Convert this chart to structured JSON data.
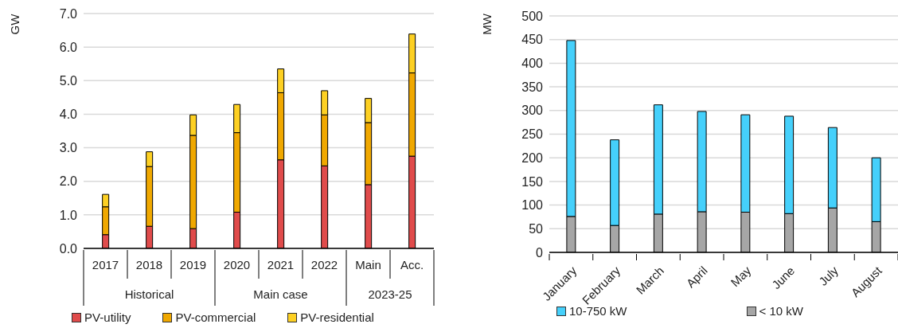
{
  "chart_data": [
    {
      "type": "bar",
      "ylabel": "GW",
      "categories": [
        "2017",
        "2018",
        "2019",
        "2020",
        "2021",
        "2022",
        "Main",
        "Acc."
      ],
      "stacked": true,
      "series": [
        {
          "name": "PV-utility",
          "color": "#e04b4b",
          "values": [
            0.41,
            0.66,
            0.59,
            1.08,
            2.64,
            2.46,
            1.9,
            2.75
          ]
        },
        {
          "name": "PV-commercial",
          "color": "#f0a800",
          "values": [
            0.83,
            1.78,
            2.78,
            2.37,
            2.0,
            1.52,
            1.85,
            2.48
          ]
        },
        {
          "name": "PV-residential",
          "color": "#fdd023",
          "values": [
            0.37,
            0.44,
            0.61,
            0.84,
            0.71,
            0.72,
            0.72,
            1.16
          ]
        }
      ],
      "ylim": [
        0,
        7
      ],
      "yticks": [
        {
          "value": 0,
          "label": "0.0"
        },
        {
          "value": 1,
          "label": "1.0"
        },
        {
          "value": 2,
          "label": "2.0"
        },
        {
          "value": 3,
          "label": "3.0"
        },
        {
          "value": 4,
          "label": "4.0"
        },
        {
          "value": 5,
          "label": "5.0"
        },
        {
          "value": 6,
          "label": "6.0"
        },
        {
          "value": 7,
          "label": "7.0"
        }
      ],
      "grid": "y",
      "legend": "bottom",
      "annotations": [
        "Historical",
        "Main case",
        "2023-25"
      ]
    },
    {
      "type": "bar",
      "ylabel": "MW",
      "categories": [
        "January",
        "February",
        "March",
        "April",
        "May",
        "June",
        "July",
        "August"
      ],
      "stacked": true,
      "series": [
        {
          "name": "< 10 kW",
          "color": "#a6a6a6",
          "values": [
            76,
            57,
            81,
            86,
            85,
            82,
            94,
            65
          ]
        },
        {
          "name": "10-750 kW",
          "color": "#45d0fb",
          "values": [
            372,
            181,
            231,
            212,
            206,
            206,
            170,
            135
          ]
        }
      ],
      "ylim": [
        0,
        500
      ],
      "yticks": [
        0,
        50,
        100,
        150,
        200,
        250,
        300,
        350,
        400,
        450,
        500
      ],
      "grid": "y",
      "legend": "bottom"
    }
  ]
}
